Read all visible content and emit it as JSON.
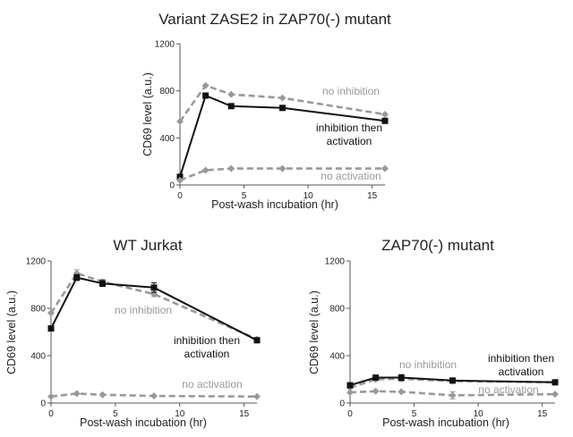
{
  "chart_data": [
    {
      "type": "line",
      "title": "Variant ZASE2 in ZAP70(-) mutant",
      "xlabel": "Post-wash incubation (hr)",
      "ylabel": "CD69 level (a.u.)",
      "xlim": [
        0,
        16
      ],
      "ylim": [
        0,
        1200
      ],
      "xticks": [
        0,
        5,
        10,
        15
      ],
      "yticks": [
        0,
        400,
        800,
        1200
      ],
      "grid": false,
      "x": [
        0,
        2,
        4,
        8,
        16
      ],
      "series": [
        {
          "label": "no inhibition",
          "style": "dashed",
          "marker": "diamond",
          "color": "#999999",
          "values": [
            540,
            845,
            770,
            740,
            600
          ],
          "errors": [
            0,
            0,
            0,
            0,
            0
          ]
        },
        {
          "label": "inhibition then activation",
          "style": "solid",
          "marker": "square",
          "color": "#111111",
          "values": [
            70,
            760,
            670,
            655,
            545
          ],
          "errors": [
            0,
            0,
            0,
            0,
            0
          ]
        },
        {
          "label": "no activation",
          "style": "dashed",
          "marker": "diamond",
          "color": "#999999",
          "values": [
            40,
            125,
            140,
            140,
            140
          ],
          "errors": [
            0,
            0,
            0,
            0,
            0
          ]
        }
      ]
    },
    {
      "type": "line",
      "title": "WT Jurkat",
      "xlabel": "Post-wash incubation (hr)",
      "ylabel": "CD69 level (a.u.)",
      "xlim": [
        0,
        16
      ],
      "ylim": [
        0,
        1200
      ],
      "xticks": [
        0,
        5,
        10,
        15
      ],
      "yticks": [
        0,
        400,
        800,
        1200
      ],
      "grid": false,
      "x": [
        0,
        2,
        4,
        8,
        16
      ],
      "series": [
        {
          "label": "no inhibition",
          "style": "dashed",
          "marker": "diamond",
          "color": "#999999",
          "values": [
            760,
            1095,
            1025,
            920,
            540
          ],
          "errors": [
            0,
            30,
            20,
            20,
            0
          ]
        },
        {
          "label": "inhibition then activation",
          "style": "solid",
          "marker": "square",
          "color": "#111111",
          "values": [
            630,
            1060,
            1010,
            975,
            530
          ],
          "errors": [
            0,
            25,
            25,
            40,
            0
          ]
        },
        {
          "label": "no activation",
          "style": "dashed",
          "marker": "diamond",
          "color": "#999999",
          "values": [
            55,
            80,
            70,
            60,
            55
          ],
          "errors": [
            0,
            0,
            0,
            0,
            0
          ]
        }
      ]
    },
    {
      "type": "line",
      "title": "ZAP70(-) mutant",
      "xlabel": "Post-wash incubation (hr)",
      "ylabel": "CD69 level (a.u.)",
      "xlim": [
        0,
        16
      ],
      "ylim": [
        0,
        1200
      ],
      "xticks": [
        0,
        5,
        10,
        15
      ],
      "yticks": [
        0,
        400,
        800,
        1200
      ],
      "grid": false,
      "x": [
        0,
        2,
        4,
        8,
        16
      ],
      "series": [
        {
          "label": "no inhibition",
          "style": "dashed",
          "marker": "diamond",
          "color": "#999999",
          "values": [
            130,
            200,
            205,
            185,
            175
          ],
          "errors": [
            0,
            0,
            20,
            0,
            0
          ]
        },
        {
          "label": "inhibition then activation",
          "style": "solid",
          "marker": "square",
          "color": "#111111",
          "values": [
            150,
            215,
            215,
            190,
            175
          ],
          "errors": [
            0,
            0,
            25,
            0,
            0
          ]
        },
        {
          "label": "no activation",
          "style": "dashed",
          "marker": "diamond",
          "color": "#999999",
          "values": [
            90,
            100,
            95,
            65,
            75
          ],
          "errors": [
            0,
            0,
            0,
            30,
            0
          ]
        }
      ]
    }
  ]
}
